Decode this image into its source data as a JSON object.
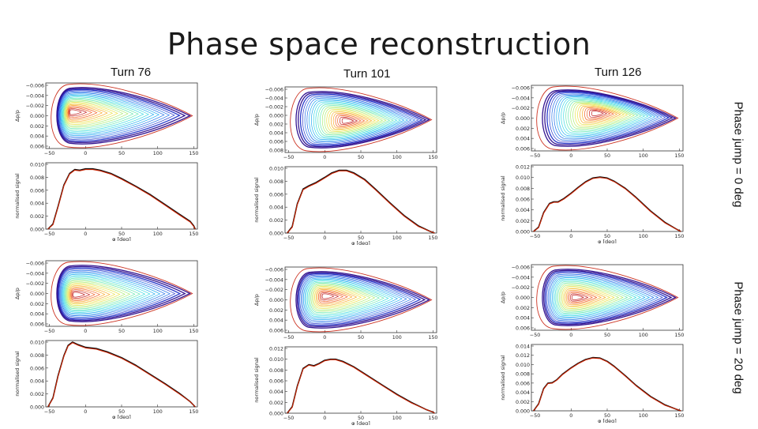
{
  "title": "Phase space reconstruction",
  "turns": [
    "Turn 76",
    "Turn 101",
    "Turn 126"
  ],
  "phase_jumps": [
    "Phase jump = 0 deg",
    "Phase jump = 20 deg"
  ],
  "colors": {
    "measured": "#111111",
    "reconstructed": "#cc2200",
    "separatrix": "#cc3322"
  },
  "chart_data": [
    {
      "type": "line",
      "turn": "Turn 76",
      "phase_jump": "Phase jump = 0 deg",
      "top": {
        "type": "contour",
        "ylabel": "Δp/p",
        "ylim": [
          -0.006,
          0.006
        ],
        "yticks": [
          "−0.006",
          "−0.004",
          "−0.002",
          "0.000",
          "0.002",
          "0.004",
          "0.006"
        ],
        "xticks": [
          "−50",
          "0",
          "50",
          "100",
          "150"
        ],
        "eye_x": -20,
        "eye_y": -0.0015
      },
      "bottom": {
        "ylabel": "normalised signal",
        "xlabel": "φ [deg]",
        "xlim": [
          -50,
          150
        ],
        "ylim": [
          0,
          0.01
        ],
        "yticks": [
          "0.000",
          "0.002",
          "0.004",
          "0.006",
          "0.008",
          "0.010"
        ],
        "xticks": [
          "−50",
          "0",
          "50",
          "100",
          "150"
        ],
        "x": [
          -52,
          -45,
          -38,
          -30,
          -22,
          -15,
          -8,
          0,
          10,
          20,
          35,
          50,
          70,
          90,
          110,
          130,
          145,
          150,
          152
        ],
        "measured": [
          0,
          0.0008,
          0.0035,
          0.0068,
          0.0086,
          0.0092,
          0.0091,
          0.0093,
          0.0093,
          0.0091,
          0.0086,
          0.0078,
          0.0066,
          0.0053,
          0.0038,
          0.0023,
          0.0012,
          0.0005,
          0
        ],
        "reconstructed": [
          0,
          0.0007,
          0.0034,
          0.0067,
          0.0085,
          0.0091,
          0.009,
          0.0092,
          0.0092,
          0.009,
          0.0085,
          0.0077,
          0.0065,
          0.0052,
          0.0037,
          0.0022,
          0.0011,
          0.0004,
          0
        ]
      }
    },
    {
      "type": "line",
      "turn": "Turn 101",
      "phase_jump": "Phase jump = 0 deg",
      "top": {
        "type": "contour",
        "ylabel": "Δp/p",
        "ylim": [
          -0.006,
          0.008
        ],
        "yticks": [
          "−0.006",
          "−0.004",
          "−0.002",
          "0.000",
          "0.002",
          "0.004",
          "0.006",
          "0.008"
        ],
        "xticks": [
          "−50",
          "0",
          "50",
          "100",
          "150"
        ],
        "eye_x": 30,
        "eye_y": 0.0005
      },
      "bottom": {
        "ylabel": "normalised signal",
        "xlabel": "φ [deg]",
        "xlim": [
          -50,
          150
        ],
        "ylim": [
          0,
          0.01
        ],
        "yticks": [
          "0.000",
          "0.002",
          "0.004",
          "0.006",
          "0.008",
          "0.010"
        ],
        "xticks": [
          "−50",
          "0",
          "50",
          "100",
          "150"
        ],
        "x": [
          -52,
          -45,
          -38,
          -30,
          -22,
          -12,
          0,
          10,
          20,
          30,
          40,
          55,
          70,
          90,
          110,
          130,
          145,
          152
        ],
        "measured": [
          0,
          0.001,
          0.0045,
          0.0068,
          0.0073,
          0.0078,
          0.0086,
          0.0093,
          0.0097,
          0.0097,
          0.0093,
          0.0083,
          0.0068,
          0.0047,
          0.0027,
          0.0011,
          0.0003,
          0
        ],
        "reconstructed": [
          0,
          0.0009,
          0.0044,
          0.0067,
          0.0072,
          0.0077,
          0.0085,
          0.0092,
          0.0096,
          0.0096,
          0.0092,
          0.0082,
          0.0067,
          0.0046,
          0.0026,
          0.001,
          0.0003,
          0
        ]
      }
    },
    {
      "type": "line",
      "turn": "Turn 126",
      "phase_jump": "Phase jump = 0 deg",
      "top": {
        "type": "contour",
        "ylabel": "Δp/p",
        "ylim": [
          -0.006,
          0.006
        ],
        "yticks": [
          "−0.006",
          "−0.004",
          "−0.002",
          "0.000",
          "0.002",
          "0.004",
          "0.006"
        ],
        "xticks": [
          "−50",
          "0",
          "50",
          "100",
          "150"
        ],
        "eye_x": 35,
        "eye_y": -0.002
      },
      "bottom": {
        "ylabel": "normalised signal",
        "xlabel": "φ [deg]",
        "xlim": [
          -50,
          150
        ],
        "ylim": [
          0,
          0.012
        ],
        "yticks": [
          "0.000",
          "0.002",
          "0.004",
          "0.006",
          "0.008",
          "0.010",
          "0.012"
        ],
        "xticks": [
          "−50",
          "0",
          "50",
          "100",
          "150"
        ],
        "x": [
          -52,
          -45,
          -38,
          -30,
          -24,
          -18,
          -10,
          0,
          10,
          20,
          30,
          40,
          50,
          60,
          75,
          90,
          110,
          130,
          145,
          152
        ],
        "measured": [
          0,
          0.0008,
          0.0035,
          0.0052,
          0.0055,
          0.0055,
          0.0061,
          0.0071,
          0.0082,
          0.0092,
          0.0099,
          0.0101,
          0.0099,
          0.0093,
          0.008,
          0.0063,
          0.0038,
          0.0017,
          0.0005,
          0
        ],
        "reconstructed": [
          0,
          0.0007,
          0.0034,
          0.0051,
          0.0054,
          0.0054,
          0.006,
          0.007,
          0.0081,
          0.0091,
          0.0098,
          0.01,
          0.0098,
          0.0092,
          0.0079,
          0.0062,
          0.0037,
          0.0016,
          0.0005,
          0
        ]
      }
    },
    {
      "type": "line",
      "turn": "Turn 76",
      "phase_jump": "Phase jump = 20 deg",
      "top": {
        "type": "contour",
        "ylabel": "Δp/p",
        "ylim": [
          -0.006,
          0.006
        ],
        "yticks": [
          "−0.006",
          "−0.004",
          "−0.002",
          "0.000",
          "0.002",
          "0.004",
          "0.006"
        ],
        "xticks": [
          "−50",
          "0",
          "50",
          "100",
          "150"
        ],
        "eye_x": -15,
        "eye_y": 0.0005
      },
      "bottom": {
        "ylabel": "normalised signal",
        "xlabel": "φ [deg]",
        "xlim": [
          -50,
          150
        ],
        "ylim": [
          0,
          0.01
        ],
        "yticks": [
          "0.000",
          "0.002",
          "0.004",
          "0.006",
          "0.008",
          "0.010"
        ],
        "xticks": [
          "−50",
          "0",
          "50",
          "100",
          "150"
        ],
        "x": [
          -52,
          -45,
          -38,
          -30,
          -24,
          -18,
          -10,
          0,
          15,
          30,
          50,
          70,
          90,
          110,
          130,
          145,
          152
        ],
        "measured": [
          0,
          0.0014,
          0.0048,
          0.0079,
          0.0095,
          0.01,
          0.0096,
          0.0092,
          0.009,
          0.0085,
          0.0076,
          0.0064,
          0.005,
          0.0036,
          0.0021,
          0.0008,
          0
        ],
        "reconstructed": [
          0,
          0.0013,
          0.0047,
          0.0078,
          0.0094,
          0.0099,
          0.0095,
          0.0091,
          0.0089,
          0.0084,
          0.0075,
          0.0063,
          0.0049,
          0.0035,
          0.002,
          0.0008,
          0
        ]
      }
    },
    {
      "type": "line",
      "turn": "Turn 101",
      "phase_jump": "Phase jump = 20 deg",
      "top": {
        "type": "contour",
        "ylabel": "Δp/p",
        "ylim": [
          -0.006,
          0.006
        ],
        "yticks": [
          "−0.006",
          "−0.004",
          "−0.002",
          "0.000",
          "0.002",
          "0.004",
          "0.006"
        ],
        "xticks": [
          "−50",
          "0",
          "50",
          "100",
          "150"
        ],
        "eye_x": 0,
        "eye_y": -0.0015
      },
      "bottom": {
        "ylabel": "normalised signal",
        "xlabel": "φ [deg]",
        "xlim": [
          -50,
          150
        ],
        "ylim": [
          0,
          0.012
        ],
        "yticks": [
          "0.000",
          "0.002",
          "0.004",
          "0.006",
          "0.008",
          "0.010",
          "0.012"
        ],
        "xticks": [
          "−50",
          "0",
          "50",
          "100",
          "150"
        ],
        "x": [
          -52,
          -45,
          -38,
          -30,
          -22,
          -15,
          -8,
          0,
          8,
          15,
          25,
          40,
          60,
          80,
          100,
          120,
          140,
          150,
          152
        ],
        "measured": [
          0,
          0.0012,
          0.005,
          0.0083,
          0.009,
          0.0088,
          0.0092,
          0.0098,
          0.01,
          0.01,
          0.0096,
          0.0086,
          0.0069,
          0.0052,
          0.0035,
          0.002,
          0.0007,
          0.0002,
          0
        ],
        "reconstructed": [
          0,
          0.0011,
          0.0049,
          0.0082,
          0.0089,
          0.0087,
          0.0091,
          0.0097,
          0.0099,
          0.0099,
          0.0095,
          0.0085,
          0.0068,
          0.0051,
          0.0034,
          0.0019,
          0.0007,
          0.0002,
          0
        ]
      }
    },
    {
      "type": "line",
      "turn": "Turn 126",
      "phase_jump": "Phase jump = 20 deg",
      "top": {
        "type": "contour",
        "ylabel": "Δp/p",
        "ylim": [
          -0.006,
          0.006
        ],
        "yticks": [
          "−0.006",
          "−0.004",
          "−0.002",
          "0.000",
          "0.002",
          "0.004",
          "0.006"
        ],
        "xticks": [
          "−50",
          "0",
          "50",
          "100",
          "150"
        ],
        "eye_x": 5,
        "eye_y": 0.0
      },
      "bottom": {
        "ylabel": "normalised signal",
        "xlabel": "φ [deg]",
        "xlim": [
          -50,
          150
        ],
        "ylim": [
          0,
          0.014
        ],
        "yticks": [
          "0.000",
          "0.002",
          "0.004",
          "0.006",
          "0.008",
          "0.010",
          "0.012",
          "0.014"
        ],
        "xticks": [
          "−50",
          "0",
          "50",
          "100",
          "150"
        ],
        "x": [
          -52,
          -45,
          -38,
          -32,
          -26,
          -20,
          -12,
          0,
          10,
          20,
          30,
          40,
          50,
          60,
          75,
          90,
          110,
          130,
          145,
          152
        ],
        "measured": [
          0,
          0.0015,
          0.0048,
          0.006,
          0.0061,
          0.0067,
          0.0079,
          0.0093,
          0.0103,
          0.0111,
          0.0115,
          0.0114,
          0.0107,
          0.0096,
          0.0076,
          0.0055,
          0.0031,
          0.0013,
          0.0004,
          0
        ],
        "reconstructed": [
          0,
          0.0014,
          0.0047,
          0.0059,
          0.006,
          0.0066,
          0.0078,
          0.0092,
          0.0102,
          0.011,
          0.0114,
          0.0113,
          0.0106,
          0.0095,
          0.0075,
          0.0054,
          0.003,
          0.0012,
          0.0004,
          0
        ]
      }
    }
  ]
}
